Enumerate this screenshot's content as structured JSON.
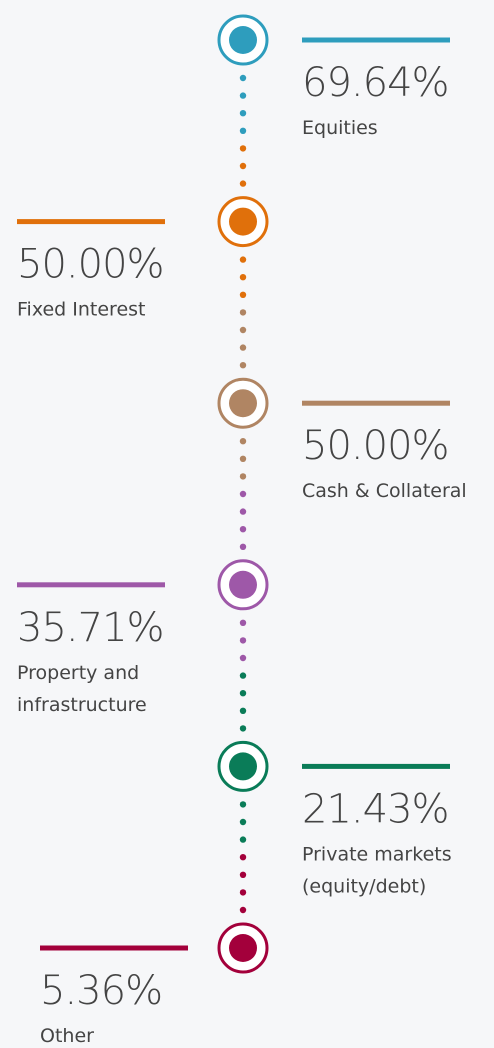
{
  "items": [
    {
      "value": "69.64%",
      "label": [
        "Equities"
      ],
      "color": "#2e9dbd",
      "side": "right"
    },
    {
      "value": "50.00%",
      "label": [
        "Fixed Interest"
      ],
      "color": "#e0700b",
      "side": "left"
    },
    {
      "value": "50.00%",
      "label": [
        "Cash & Collateral"
      ],
      "color": "#b08563",
      "side": "right"
    },
    {
      "value": "35.71%",
      "label": [
        "Property and",
        "infrastructure"
      ],
      "color": "#9e58a8",
      "side": "left"
    },
    {
      "value": "21.43%",
      "label": [
        "Private markets",
        "(equity/debt)"
      ],
      "color": "#0a7c58",
      "side": "right"
    },
    {
      "value": "5.36%",
      "label": [
        "Other"
      ],
      "color": "#a3003b",
      "side": "left"
    }
  ]
}
